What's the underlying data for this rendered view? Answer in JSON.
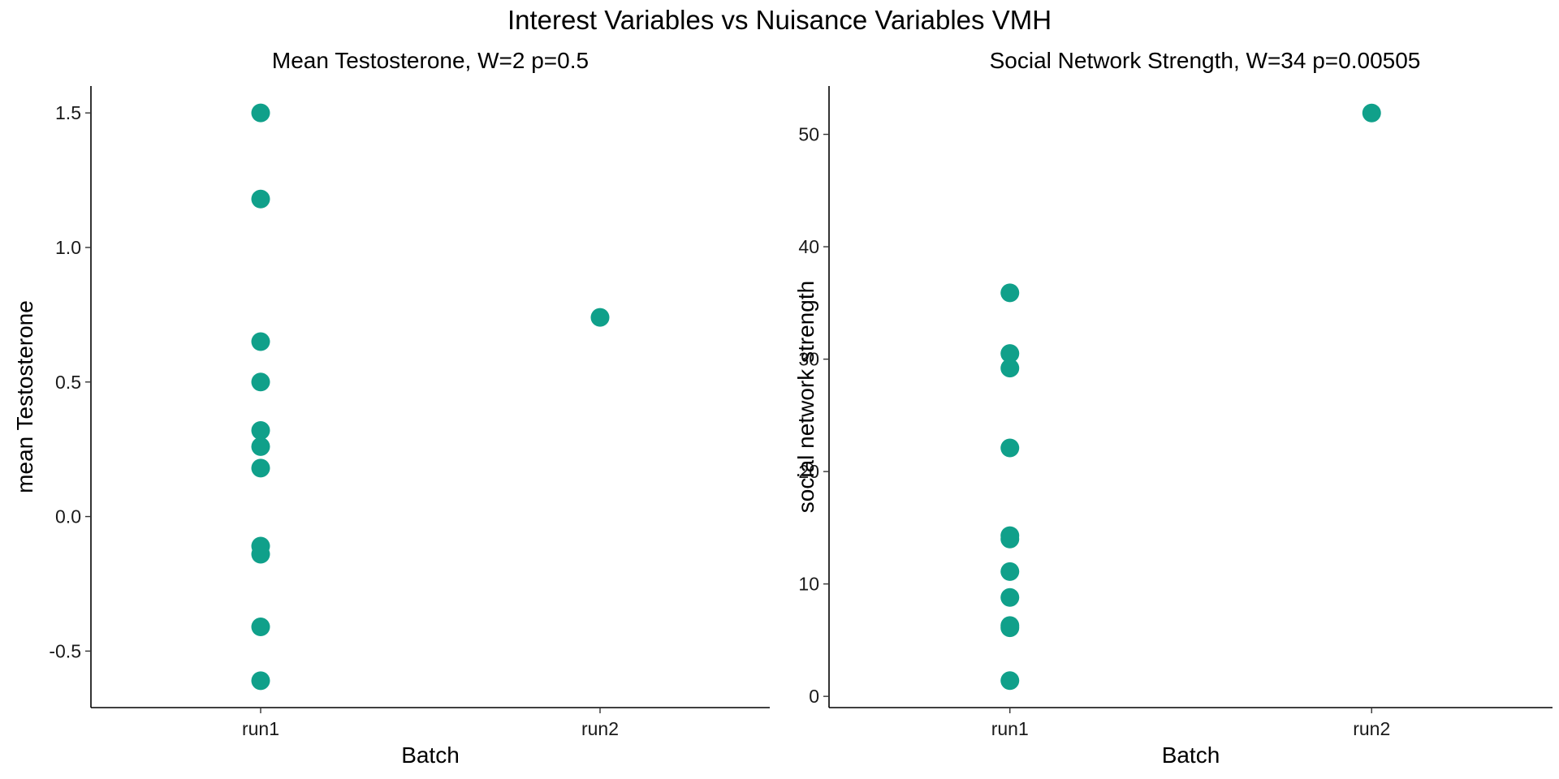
{
  "figure": {
    "title": "Interest Variables vs Nuisance Variables VMH",
    "accent_color": "#10a08a"
  },
  "chart_data": [
    {
      "type": "scatter",
      "title": "Mean Testosterone, W=2 p=0.5",
      "xlabel": "Batch",
      "ylabel": "mean Testosterone",
      "categories": [
        "run1",
        "run2"
      ],
      "yticks": [
        "-0.5",
        "0.0",
        "0.5",
        "1.0",
        "1.5"
      ],
      "ylim": [
        -0.71,
        1.6
      ],
      "grid": false,
      "point_color": "#10a08a",
      "points": [
        {
          "x": "run1",
          "y": 1.5
        },
        {
          "x": "run1",
          "y": 1.18
        },
        {
          "x": "run1",
          "y": 0.65
        },
        {
          "x": "run1",
          "y": 0.5
        },
        {
          "x": "run1",
          "y": 0.32
        },
        {
          "x": "run1",
          "y": 0.26
        },
        {
          "x": "run1",
          "y": 0.18
        },
        {
          "x": "run1",
          "y": -0.11
        },
        {
          "x": "run1",
          "y": -0.14
        },
        {
          "x": "run1",
          "y": -0.41
        },
        {
          "x": "run1",
          "y": -0.61
        },
        {
          "x": "run2",
          "y": 0.74
        }
      ]
    },
    {
      "type": "scatter",
      "title": "Social Network Strength, W=34 p=0.00505",
      "xlabel": "Batch",
      "ylabel": "social network strength",
      "categories": [
        "run1",
        "run2"
      ],
      "yticks": [
        "0",
        "10",
        "20",
        "30",
        "40",
        "50"
      ],
      "ylim": [
        -1.0,
        54.3
      ],
      "grid": false,
      "point_color": "#10a08a",
      "points": [
        {
          "x": "run1",
          "y": 35.9
        },
        {
          "x": "run1",
          "y": 30.5
        },
        {
          "x": "run1",
          "y": 29.2
        },
        {
          "x": "run1",
          "y": 22.1
        },
        {
          "x": "run1",
          "y": 14.3
        },
        {
          "x": "run1",
          "y": 14.0
        },
        {
          "x": "run1",
          "y": 11.1
        },
        {
          "x": "run1",
          "y": 8.8
        },
        {
          "x": "run1",
          "y": 6.3
        },
        {
          "x": "run1",
          "y": 6.1
        },
        {
          "x": "run1",
          "y": 1.4
        },
        {
          "x": "run2",
          "y": 51.9
        }
      ]
    }
  ]
}
